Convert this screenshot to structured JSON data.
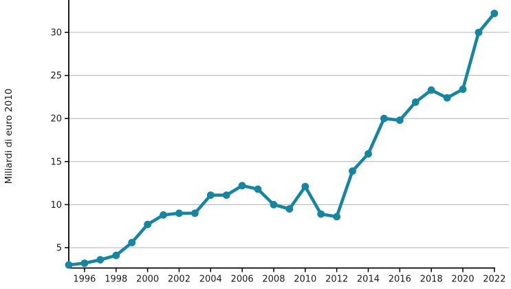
{
  "chart_data": {
    "type": "line",
    "title": "",
    "xlabel": "",
    "ylabel": "Miliardi di euro 2010",
    "x": [
      1995,
      1996,
      1997,
      1998,
      1999,
      2000,
      2001,
      2002,
      2003,
      2004,
      2005,
      2006,
      2007,
      2008,
      2009,
      2010,
      2011,
      2012,
      2013,
      2014,
      2015,
      2016,
      2017,
      2018,
      2019,
      2020,
      2021,
      2022
    ],
    "values": [
      3.0,
      3.2,
      3.6,
      4.1,
      5.6,
      7.7,
      8.8,
      9.0,
      9.0,
      11.1,
      11.1,
      12.2,
      11.8,
      10.0,
      9.5,
      12.1,
      8.9,
      8.6,
      13.9,
      15.9,
      20.0,
      19.8,
      21.9,
      23.3,
      22.4,
      23.4,
      30.0,
      32.2
    ],
    "x_ticks": [
      1996,
      1998,
      2000,
      2002,
      2004,
      2006,
      2008,
      2010,
      2012,
      2014,
      2016,
      2018,
      2020,
      2022
    ],
    "y_ticks": [
      5,
      10,
      15,
      20,
      25,
      30
    ],
    "xlim": [
      1995,
      2022.75
    ],
    "ylim": [
      2.64,
      33.44
    ],
    "grid": "horizontal",
    "legend": "none",
    "marker": "circle",
    "colors": {
      "series": "#1486a2",
      "grid": "#b0b0b0",
      "axis": "#000000",
      "text": "#1a1a1a"
    }
  }
}
